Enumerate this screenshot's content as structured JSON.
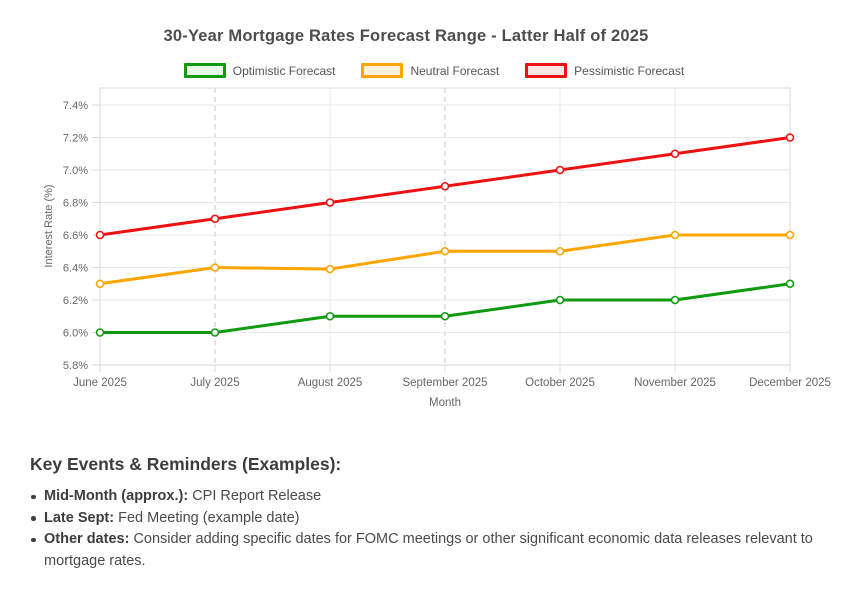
{
  "title": "30-Year Mortgage Rates Forecast Range - Latter Half of 2025",
  "chart_data": {
    "type": "line",
    "x": [
      "June 2025",
      "July 2025",
      "August 2025",
      "September 2025",
      "October 2025",
      "November 2025",
      "December 2025"
    ],
    "series": [
      {
        "name": "Optimistic Forecast",
        "color": "#0f9a0f",
        "legend_fill": "#e7f6e7",
        "values": [
          6.0,
          6.0,
          6.1,
          6.1,
          6.2,
          6.2,
          6.3
        ]
      },
      {
        "name": "Neutral Forecast",
        "color": "#ffa500",
        "legend_fill": "#fcf0da",
        "values": [
          6.3,
          6.4,
          6.39,
          6.5,
          6.5,
          6.6,
          6.6
        ]
      },
      {
        "name": "Pessimistic Forecast",
        "color": "#ee1111",
        "legend_fill": "#fbe5e5",
        "values": [
          6.6,
          6.7,
          6.8,
          6.9,
          7.0,
          7.1,
          7.2
        ]
      }
    ],
    "xlabel": "Month",
    "ylabel": "Interest Rate (%)",
    "yticks": [
      5.8,
      6.0,
      6.2,
      6.4,
      6.6,
      6.8,
      7.0,
      7.2,
      7.4
    ],
    "ylim": [
      5.8,
      7.4
    ],
    "ytick_format": "percent",
    "grid": true,
    "dashed_vlines": [
      "July 2025",
      "September 2025"
    ],
    "legend_position": "top"
  },
  "events": {
    "heading": "Key Events & Reminders (Examples):",
    "items": [
      {
        "label": "Mid-Month (approx.):",
        "text": " CPI Report Release"
      },
      {
        "label": "Late Sept:",
        "text": " Fed Meeting (example date)"
      },
      {
        "label": "Other dates:",
        "text": " Consider adding specific dates for FOMC meetings or other significant economic data releases relevant to mortgage rates."
      }
    ]
  }
}
